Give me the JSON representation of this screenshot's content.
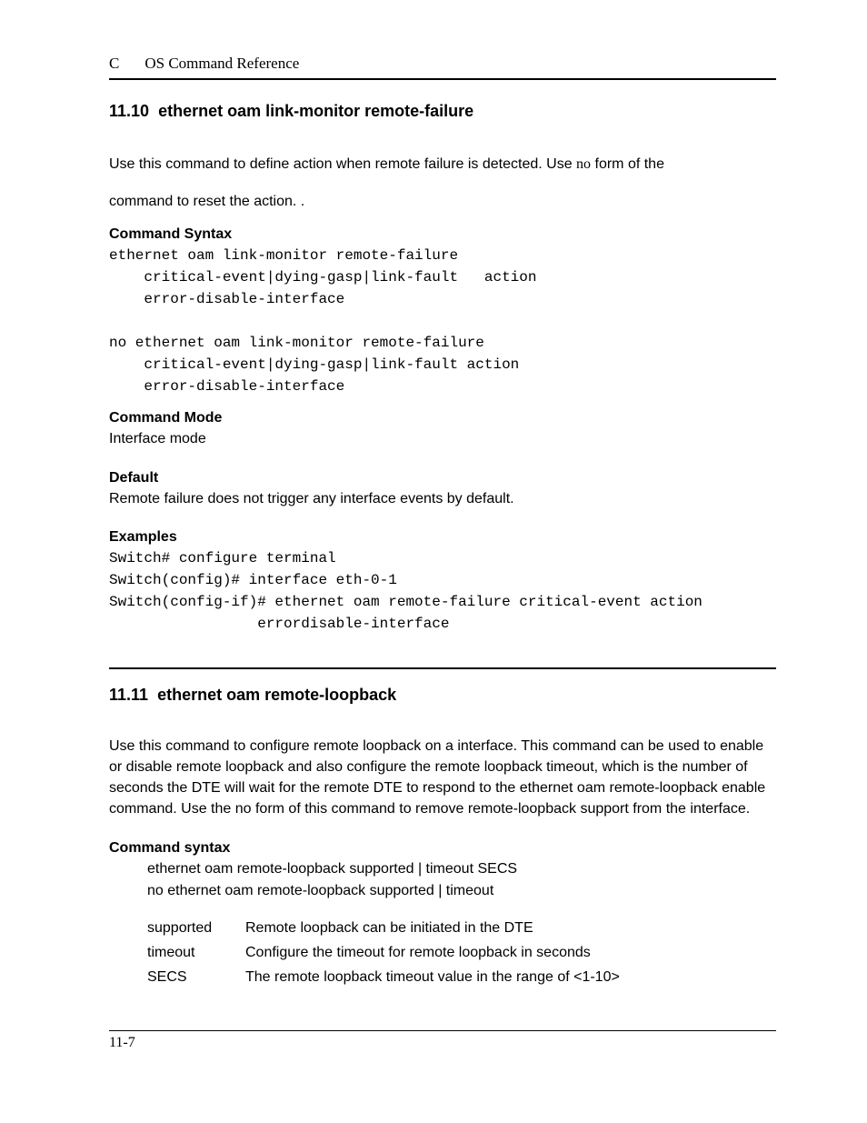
{
  "header": {
    "letter": "C",
    "title": "OS Command Reference"
  },
  "section1": {
    "number": "11.10",
    "title": "ethernet oam link-monitor remote-failure",
    "intro_part1": "Use this command to define action when remote failure is detected. Use ",
    "intro_no": "no",
    "intro_part2": " form of the",
    "intro_line2": "command to reset the action. .",
    "syntax_head": "Command Syntax",
    "syntax_code": "ethernet oam link-monitor remote-failure\n    critical-event|dying-gasp|link-fault   action\n    error-disable-interface\n\nno ethernet oam link-monitor remote-failure\n    critical-event|dying-gasp|link-fault action\n    error-disable-interface",
    "mode_head": "Command Mode",
    "mode_text": "Interface mode",
    "default_head": "Default",
    "default_text": "Remote failure does not trigger any interface events by default.",
    "examples_head": "Examples",
    "examples_code": "Switch# configure terminal\nSwitch(config)# interface eth-0-1\nSwitch(config-if)# ethernet oam remote-failure critical-event action\n                 errordisable-interface"
  },
  "section2": {
    "number": "11.11",
    "title": "ethernet oam remote-loopback",
    "intro": "Use this command to configure remote loopback on a interface. This command can be used to enable or disable remote loopback and also configure the remote loopback timeout, which is the number of seconds the DTE will wait for the remote DTE to respond to the ethernet oam remote-loopback enable command. Use the no form of this command to remove remote-loopback support from the interface.",
    "syntax_head": "Command syntax",
    "syntax_lines": [
      "ethernet oam remote-loopback supported | timeout SECS",
      "no ethernet oam remote-loopback supported | timeout"
    ],
    "params": [
      {
        "name": "supported",
        "desc": "Remote loopback can be initiated in the DTE"
      },
      {
        "name": "timeout",
        "desc": "Configure the timeout for remote loopback in seconds"
      },
      {
        "name": "SECS",
        "desc": "The remote loopback timeout value in the range of <1-10>"
      }
    ]
  },
  "footer": {
    "page": "11-7"
  }
}
